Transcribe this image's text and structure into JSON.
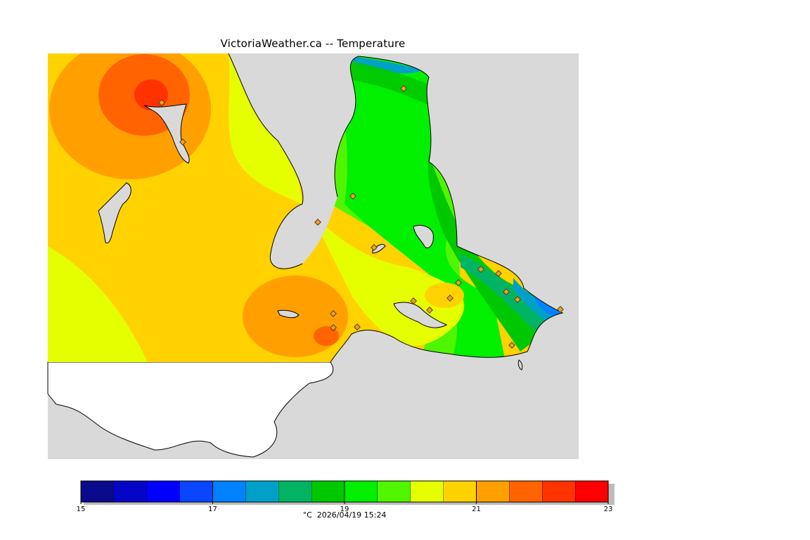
{
  "title": "VictoriaWeather.ca -- Temperature",
  "unit": "°C",
  "timestamp": "2026/04/19 15:24",
  "colors": {
    "ocean_gray": "#d9d9d9",
    "land_outside": "#ffffff"
  },
  "scale": {
    "min": 15,
    "max": 23,
    "tick_labels": [
      "15",
      "17",
      "19",
      "21",
      "23"
    ],
    "bands": [
      {
        "from": 15.0,
        "to": 15.5,
        "color": "#0a0a8c"
      },
      {
        "from": 15.5,
        "to": 16.0,
        "color": "#0505c8"
      },
      {
        "from": 16.0,
        "to": 16.5,
        "color": "#0000ff"
      },
      {
        "from": 16.5,
        "to": 17.0,
        "color": "#0a46ff"
      },
      {
        "from": 17.0,
        "to": 17.5,
        "color": "#0082ff"
      },
      {
        "from": 17.5,
        "to": 18.0,
        "color": "#00a0c8"
      },
      {
        "from": 18.0,
        "to": 18.5,
        "color": "#00b464"
      },
      {
        "from": 18.5,
        "to": 19.0,
        "color": "#00c800"
      },
      {
        "from": 19.0,
        "to": 19.5,
        "color": "#00f000"
      },
      {
        "from": 19.5,
        "to": 20.0,
        "color": "#50f500"
      },
      {
        "from": 20.0,
        "to": 20.5,
        "color": "#e6ff00"
      },
      {
        "from": 20.5,
        "to": 21.0,
        "color": "#ffd200"
      },
      {
        "from": 21.0,
        "to": 21.5,
        "color": "#ffa000"
      },
      {
        "from": 21.5,
        "to": 22.0,
        "color": "#ff6400"
      },
      {
        "from": 22.0,
        "to": 22.5,
        "color": "#ff3200"
      },
      {
        "from": 22.5,
        "to": 23.0,
        "color": "#ff0000"
      }
    ]
  }
}
